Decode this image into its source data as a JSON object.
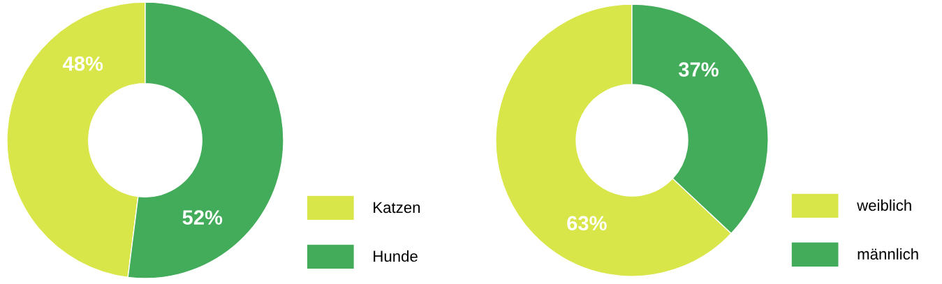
{
  "chart_data": [
    {
      "type": "donut",
      "categories": [
        "Katzen",
        "Hunde"
      ],
      "values": [
        48,
        52
      ],
      "colors": [
        "#d9e64a",
        "#43ac5a"
      ],
      "value_labels": [
        "48%",
        "52%"
      ],
      "legend": "bottom right"
    },
    {
      "type": "donut",
      "categories": [
        "weiblich",
        "männlich"
      ],
      "values": [
        63,
        37
      ],
      "colors": [
        "#d9e64a",
        "#43ac5a"
      ],
      "value_labels": [
        "63%",
        "37%"
      ],
      "legend": "bottom right"
    }
  ]
}
